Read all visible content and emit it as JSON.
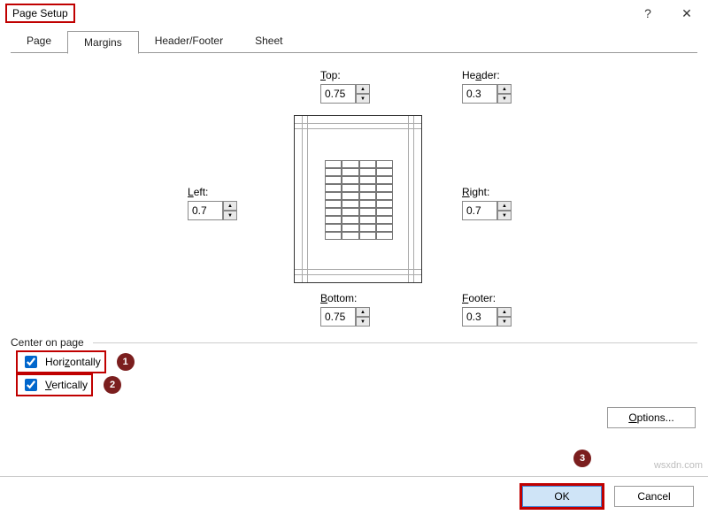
{
  "title": "Page Setup",
  "tabs": {
    "page": "Page",
    "margins": "Margins",
    "header_footer": "Header/Footer",
    "sheet": "Sheet",
    "active": "Margins"
  },
  "margins": {
    "top": {
      "label": "Top:",
      "value": "0.75",
      "underline_index": 0
    },
    "header": {
      "label": "Header:",
      "value": "0.3",
      "underline_index": 0
    },
    "left": {
      "label": "Left:",
      "value": "0.7",
      "underline_index": 0
    },
    "right": {
      "label": "Right:",
      "value": "0.7",
      "underline_index": 0
    },
    "bottom": {
      "label": "Bottom:",
      "value": "0.75",
      "underline_index": 0
    },
    "footer": {
      "label": "Footer:",
      "value": "0.3",
      "underline_index": 0
    }
  },
  "center_on_page": {
    "legend": "Center on page",
    "horizontally": {
      "label": "Horizontally",
      "checked": true,
      "underline_index": 4
    },
    "vertically": {
      "label": "Vertically",
      "checked": true,
      "underline_index": 0
    }
  },
  "buttons": {
    "options": "Options...",
    "ok": "OK",
    "cancel": "Cancel",
    "options_underline_index": 0
  },
  "annotations": {
    "title_highlight": true,
    "badges": [
      "1",
      "2",
      "3"
    ],
    "highlight_color": "#c00000",
    "badge_bg": "#7b1e1e"
  },
  "colors": {
    "ok_bg": "#cfe4f7",
    "ok_border": "#3a82d6",
    "tab_border": "#999999"
  },
  "watermark": "wsxdn.com"
}
